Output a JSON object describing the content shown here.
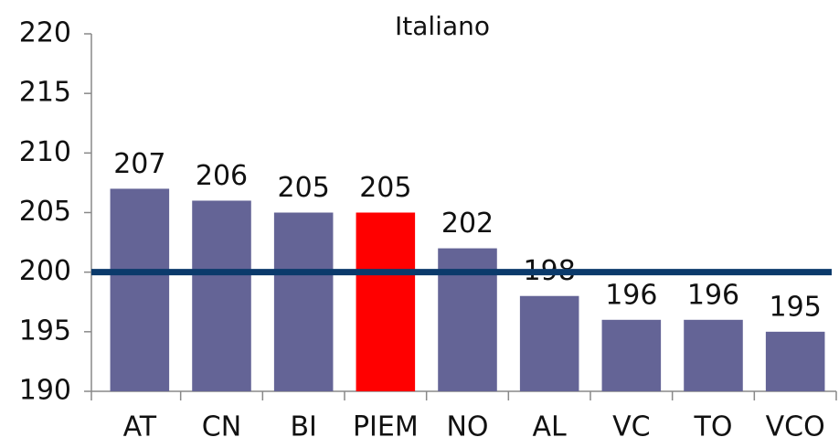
{
  "chart_data": {
    "type": "bar",
    "title": "Italiano",
    "categories": [
      "AT",
      "CN",
      "BI",
      "PIEM",
      "NO",
      "AL",
      "VC",
      "TO",
      "VCO"
    ],
    "values": [
      207,
      206,
      205,
      205,
      202,
      198,
      196,
      196,
      195
    ],
    "colors": [
      "#646496",
      "#646496",
      "#646496",
      "#ff0000",
      "#646496",
      "#646496",
      "#646496",
      "#646496",
      "#646496"
    ],
    "ylim": [
      190,
      220
    ],
    "yticks": [
      190,
      195,
      200,
      205,
      210,
      215,
      220
    ],
    "reference_line": {
      "value": 200,
      "color": "#0b3a6b"
    }
  }
}
